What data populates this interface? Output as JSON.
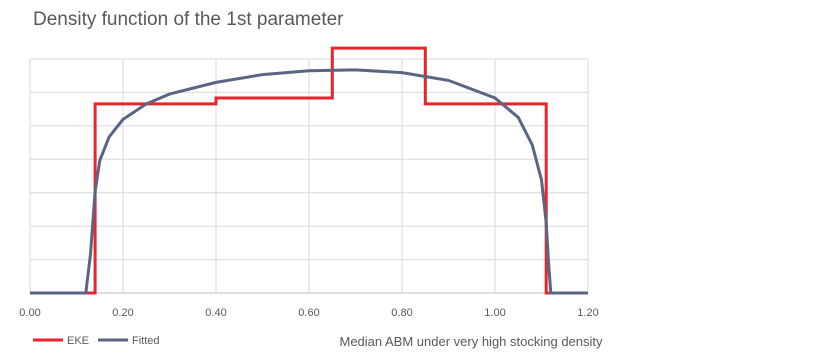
{
  "chart_data": {
    "type": "line",
    "title": "Density function of the 1st parameter",
    "xlabel": "Median ABM under very high stocking density",
    "ylabel": "",
    "xlim": [
      0,
      1.2
    ],
    "ylim": [
      0,
      6
    ],
    "x_ticks": [
      "0.00",
      "0.20",
      "0.40",
      "0.60",
      "0.80",
      "1.00",
      "1.20"
    ],
    "grid": true,
    "legend_position": "bottom-left",
    "series": [
      {
        "name": "EKE",
        "color": "#e8252a",
        "step": true,
        "x": [
          0.0,
          0.14,
          0.14,
          0.4,
          0.4,
          0.65,
          0.65,
          0.85,
          0.85,
          1.11,
          1.11,
          1.2
        ],
        "y": [
          0.0,
          0.0,
          4.85,
          4.85,
          5.0,
          5.0,
          6.28,
          6.28,
          4.85,
          4.85,
          0.0,
          0.0
        ]
      },
      {
        "name": "Fitted",
        "color": "#5a6583",
        "x": [
          0.0,
          0.12,
          0.13,
          0.14,
          0.15,
          0.17,
          0.2,
          0.25,
          0.3,
          0.4,
          0.5,
          0.6,
          0.7,
          0.8,
          0.9,
          1.0,
          1.05,
          1.08,
          1.1,
          1.11,
          1.115,
          1.12,
          1.2
        ],
        "y": [
          0.0,
          0.0,
          1.0,
          2.6,
          3.4,
          4.0,
          4.45,
          4.85,
          5.1,
          5.4,
          5.6,
          5.7,
          5.72,
          5.65,
          5.45,
          5.0,
          4.5,
          3.8,
          2.9,
          1.8,
          0.8,
          0.0,
          0.0
        ]
      }
    ]
  }
}
